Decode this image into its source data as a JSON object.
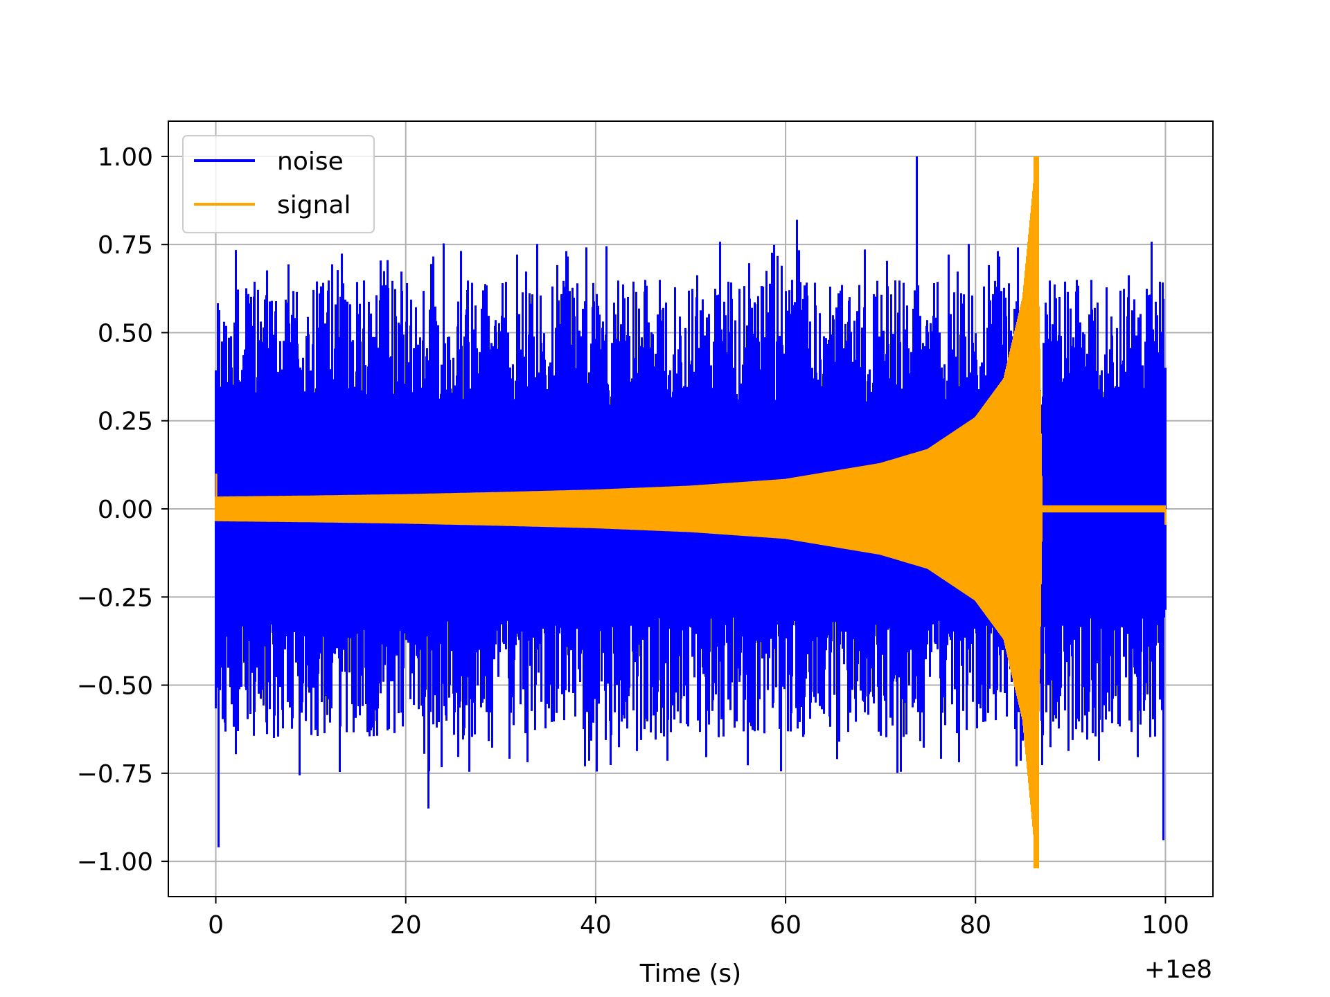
{
  "chart_data": {
    "type": "line",
    "title": "",
    "xlabel": "Time (s)",
    "ylabel": "",
    "x_offset_label": "+1e8",
    "xlim": [
      -5,
      105
    ],
    "ylim": [
      -1.1,
      1.1
    ],
    "x_ticks": [
      0,
      20,
      40,
      60,
      80,
      100
    ],
    "x_tick_labels": [
      "0",
      "20",
      "40",
      "60",
      "80",
      "100"
    ],
    "y_ticks": [
      1.0,
      0.75,
      0.5,
      0.25,
      0.0,
      -0.25,
      -0.5,
      -0.75,
      -1.0
    ],
    "y_tick_labels": [
      "1.00",
      "0.75",
      "0.50",
      "0.25",
      "0.00",
      "−0.25",
      "−0.50",
      "−0.75",
      "−1.00"
    ],
    "grid": true,
    "legend_position": "top-left",
    "series": [
      {
        "name": "noise",
        "color": "#0000ff",
        "description_envelope": {
          "x_range": [
            0,
            100
          ],
          "typical_abs_peak": 0.6,
          "max": 1.0,
          "min": -0.96,
          "notable_peaks": [
            {
              "x": 0.3,
              "y": -0.96
            },
            {
              "x": 73.8,
              "y": 1.0
            },
            {
              "x": 61.2,
              "y": 0.82
            },
            {
              "x": 99.8,
              "y": -0.94
            },
            {
              "x": 22.4,
              "y": -0.85
            }
          ]
        }
      },
      {
        "name": "signal",
        "color": "#ffa500",
        "envelope_x": [
          0,
          10,
          20,
          30,
          40,
          50,
          60,
          70,
          75,
          80,
          83,
          85,
          86,
          86.4,
          87,
          100
        ],
        "envelope_y": [
          0.035,
          0.038,
          0.042,
          0.048,
          0.055,
          0.066,
          0.085,
          0.13,
          0.17,
          0.26,
          0.37,
          0.6,
          0.88,
          1.0,
          0.01,
          0.01
        ],
        "min": -1.02,
        "max": 1.0
      }
    ]
  }
}
